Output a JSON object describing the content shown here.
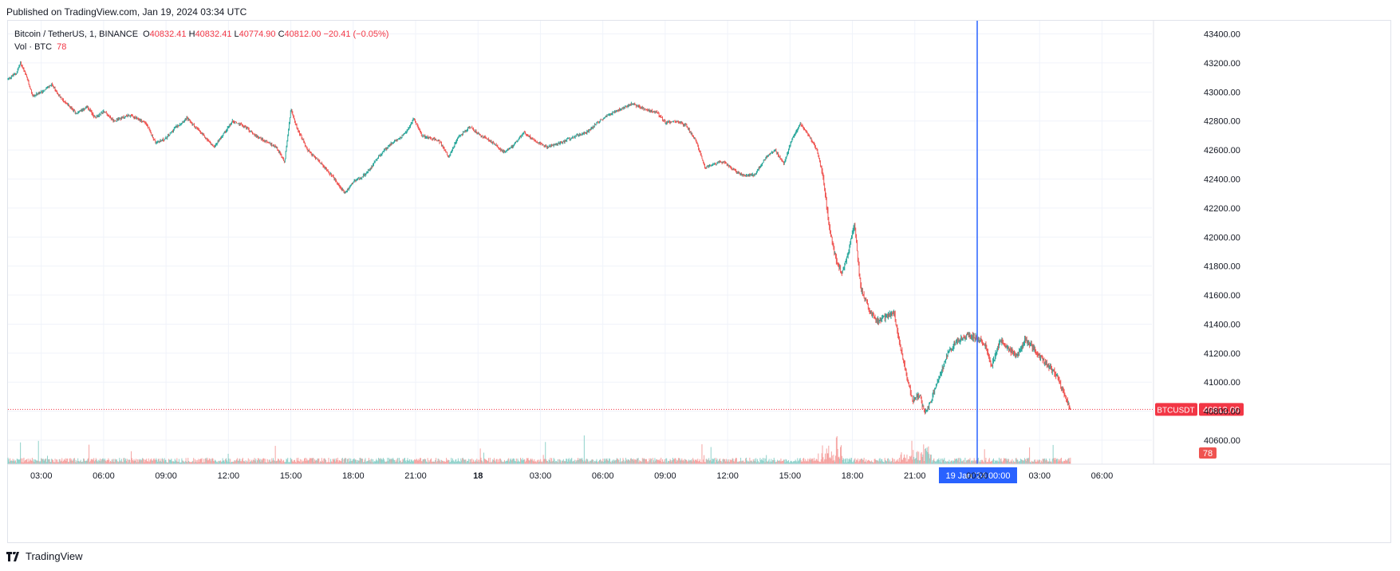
{
  "header": {
    "published": "Published on TradingView.com, Jan 19, 2024 03:34 UTC"
  },
  "legend": {
    "symbol": "Bitcoin / TetherUS, 1, BINANCE",
    "open_label": "O",
    "open": "40832.41",
    "high_label": "H",
    "high": "40832.41",
    "low_label": "L",
    "low": "40774.90",
    "close_label": "C",
    "close": "40812.00",
    "change": "−20.41 (−0.05%)",
    "vol_label": "Vol · BTC",
    "vol": "78"
  },
  "price_tag": {
    "symbol": "BTCUSDT",
    "value": "40812.00"
  },
  "volume_tag": "78",
  "crosshair_label": {
    "date": "19 Jan '24",
    "time": "00:00"
  },
  "footer": {
    "brand": "TradingView"
  },
  "colors": {
    "up": "#26a69a",
    "down": "#ef5350",
    "crosshair": "#2962ff",
    "tag": "#f23645",
    "grid": "#f0f3fa"
  },
  "chart_data": {
    "type": "candlestick",
    "symbol": "BTCUSDT",
    "interval": "1 minute",
    "ylim": [
      40500,
      43450
    ],
    "y_ticks": [
      40600,
      40800,
      41000,
      41200,
      41400,
      41600,
      41800,
      42000,
      42200,
      42400,
      42600,
      42800,
      43000,
      43200,
      43400
    ],
    "y_tick_labels": [
      "40600.00",
      "40800.00",
      "41000.00",
      "41200.00",
      "41400.00",
      "41600.00",
      "41800.00",
      "42000.00",
      "42200.00",
      "42400.00",
      "42600.00",
      "42800.00",
      "43000.00",
      "43200.00",
      "43400.00"
    ],
    "x_ticks": [
      "03:00",
      "06:00",
      "09:00",
      "12:00",
      "15:00",
      "18:00",
      "21:00",
      "18",
      "03:00",
      "06:00",
      "09:00",
      "12:00",
      "15:00",
      "18:00",
      "21:00",
      "00:00",
      "03:00",
      "06:00"
    ],
    "x_tick_hours": [
      3,
      6,
      9,
      12,
      15,
      18,
      21,
      24,
      27,
      30,
      33,
      36,
      39,
      42,
      45,
      48,
      51,
      54
    ],
    "x_range_hours": [
      1.4,
      56.4
    ],
    "crosshair_hour": 48,
    "last_price": 40812.0,
    "price_path": [
      [
        1.4,
        43090
      ],
      [
        1.8,
        43130
      ],
      [
        2.0,
        43200
      ],
      [
        2.3,
        43100
      ],
      [
        2.6,
        42970
      ],
      [
        3.0,
        43000
      ],
      [
        3.5,
        43050
      ],
      [
        4.0,
        42950
      ],
      [
        4.7,
        42850
      ],
      [
        5.2,
        42900
      ],
      [
        5.6,
        42820
      ],
      [
        6.0,
        42870
      ],
      [
        6.5,
        42800
      ],
      [
        7.2,
        42840
      ],
      [
        8.0,
        42790
      ],
      [
        8.5,
        42650
      ],
      [
        9.0,
        42680
      ],
      [
        9.4,
        42750
      ],
      [
        10.0,
        42820
      ],
      [
        10.8,
        42700
      ],
      [
        11.3,
        42620
      ],
      [
        11.8,
        42720
      ],
      [
        12.2,
        42800
      ],
      [
        12.8,
        42760
      ],
      [
        13.3,
        42700
      ],
      [
        13.8,
        42660
      ],
      [
        14.3,
        42620
      ],
      [
        14.7,
        42520
      ],
      [
        15.0,
        42880
      ],
      [
        15.3,
        42750
      ],
      [
        15.8,
        42600
      ],
      [
        16.5,
        42500
      ],
      [
        17.1,
        42400
      ],
      [
        17.6,
        42300
      ],
      [
        18.0,
        42380
      ],
      [
        18.4,
        42410
      ],
      [
        18.7,
        42450
      ],
      [
        19.3,
        42570
      ],
      [
        19.8,
        42640
      ],
      [
        20.2,
        42680
      ],
      [
        20.6,
        42730
      ],
      [
        20.9,
        42820
      ],
      [
        21.3,
        42700
      ],
      [
        21.8,
        42680
      ],
      [
        22.2,
        42650
      ],
      [
        22.6,
        42550
      ],
      [
        23.0,
        42680
      ],
      [
        23.6,
        42760
      ],
      [
        24.0,
        42710
      ],
      [
        24.6,
        42660
      ],
      [
        25.3,
        42580
      ],
      [
        25.8,
        42650
      ],
      [
        26.2,
        42720
      ],
      [
        26.8,
        42660
      ],
      [
        27.3,
        42620
      ],
      [
        28.0,
        42650
      ],
      [
        28.7,
        42700
      ],
      [
        29.2,
        42720
      ],
      [
        29.7,
        42780
      ],
      [
        30.2,
        42840
      ],
      [
        30.8,
        42880
      ],
      [
        31.4,
        42920
      ],
      [
        32.0,
        42880
      ],
      [
        32.6,
        42860
      ],
      [
        33.0,
        42790
      ],
      [
        33.5,
        42800
      ],
      [
        34.0,
        42770
      ],
      [
        34.5,
        42660
      ],
      [
        34.9,
        42480
      ],
      [
        35.3,
        42500
      ],
      [
        35.8,
        42520
      ],
      [
        36.3,
        42460
      ],
      [
        36.8,
        42420
      ],
      [
        37.3,
        42430
      ],
      [
        37.9,
        42560
      ],
      [
        38.3,
        42600
      ],
      [
        38.7,
        42500
      ],
      [
        39.1,
        42680
      ],
      [
        39.5,
        42780
      ],
      [
        39.9,
        42700
      ],
      [
        40.3,
        42600
      ],
      [
        40.6,
        42400
      ],
      [
        40.9,
        42050
      ],
      [
        41.2,
        41850
      ],
      [
        41.5,
        41750
      ],
      [
        41.8,
        41900
      ],
      [
        42.1,
        42080
      ],
      [
        42.4,
        41650
      ],
      [
        42.8,
        41500
      ],
      [
        43.2,
        41420
      ],
      [
        43.6,
        41450
      ],
      [
        44.0,
        41480
      ],
      [
        44.3,
        41250
      ],
      [
        44.6,
        41050
      ],
      [
        44.9,
        40870
      ],
      [
        45.2,
        40920
      ],
      [
        45.5,
        40780
      ],
      [
        45.8,
        40880
      ],
      [
        46.2,
        41050
      ],
      [
        46.6,
        41200
      ],
      [
        47.0,
        41280
      ],
      [
        47.5,
        41320
      ],
      [
        48.0,
        41300
      ],
      [
        48.4,
        41260
      ],
      [
        48.7,
        41110
      ],
      [
        49.1,
        41290
      ],
      [
        49.5,
        41230
      ],
      [
        49.9,
        41180
      ],
      [
        50.3,
        41290
      ],
      [
        50.7,
        41240
      ],
      [
        51.1,
        41160
      ],
      [
        51.5,
        41100
      ],
      [
        51.9,
        41030
      ],
      [
        52.2,
        40900
      ],
      [
        52.5,
        40812
      ]
    ],
    "volume": {
      "typical": 15,
      "last": 78
    }
  }
}
